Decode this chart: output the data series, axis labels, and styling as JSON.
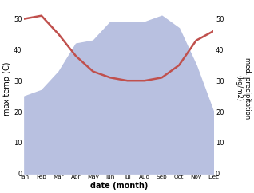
{
  "months": [
    "Jan",
    "Feb",
    "Mar",
    "Apr",
    "May",
    "Jun",
    "Jul",
    "Aug",
    "Sep",
    "Oct",
    "Nov",
    "Dec"
  ],
  "rainfall": [
    25,
    27,
    33,
    42,
    43,
    49,
    49,
    49,
    51,
    47,
    35,
    20
  ],
  "temperature": [
    50,
    51,
    45,
    38,
    33,
    31,
    30,
    30,
    31,
    35,
    43,
    46
  ],
  "temp_color": "#c0504d",
  "rain_fill_color": "#b8c0e0",
  "ylabel_left": "max temp (C)",
  "ylabel_right": "med. precipitation\n(kg/m2)",
  "xlabel": "date (month)",
  "ylim_left": [
    0,
    55
  ],
  "ylim_right": [
    0,
    55
  ],
  "yticks_left": [
    0,
    10,
    20,
    30,
    40,
    50
  ],
  "yticks_right": [
    0,
    10,
    20,
    30,
    40,
    50
  ],
  "background_color": "#ffffff"
}
